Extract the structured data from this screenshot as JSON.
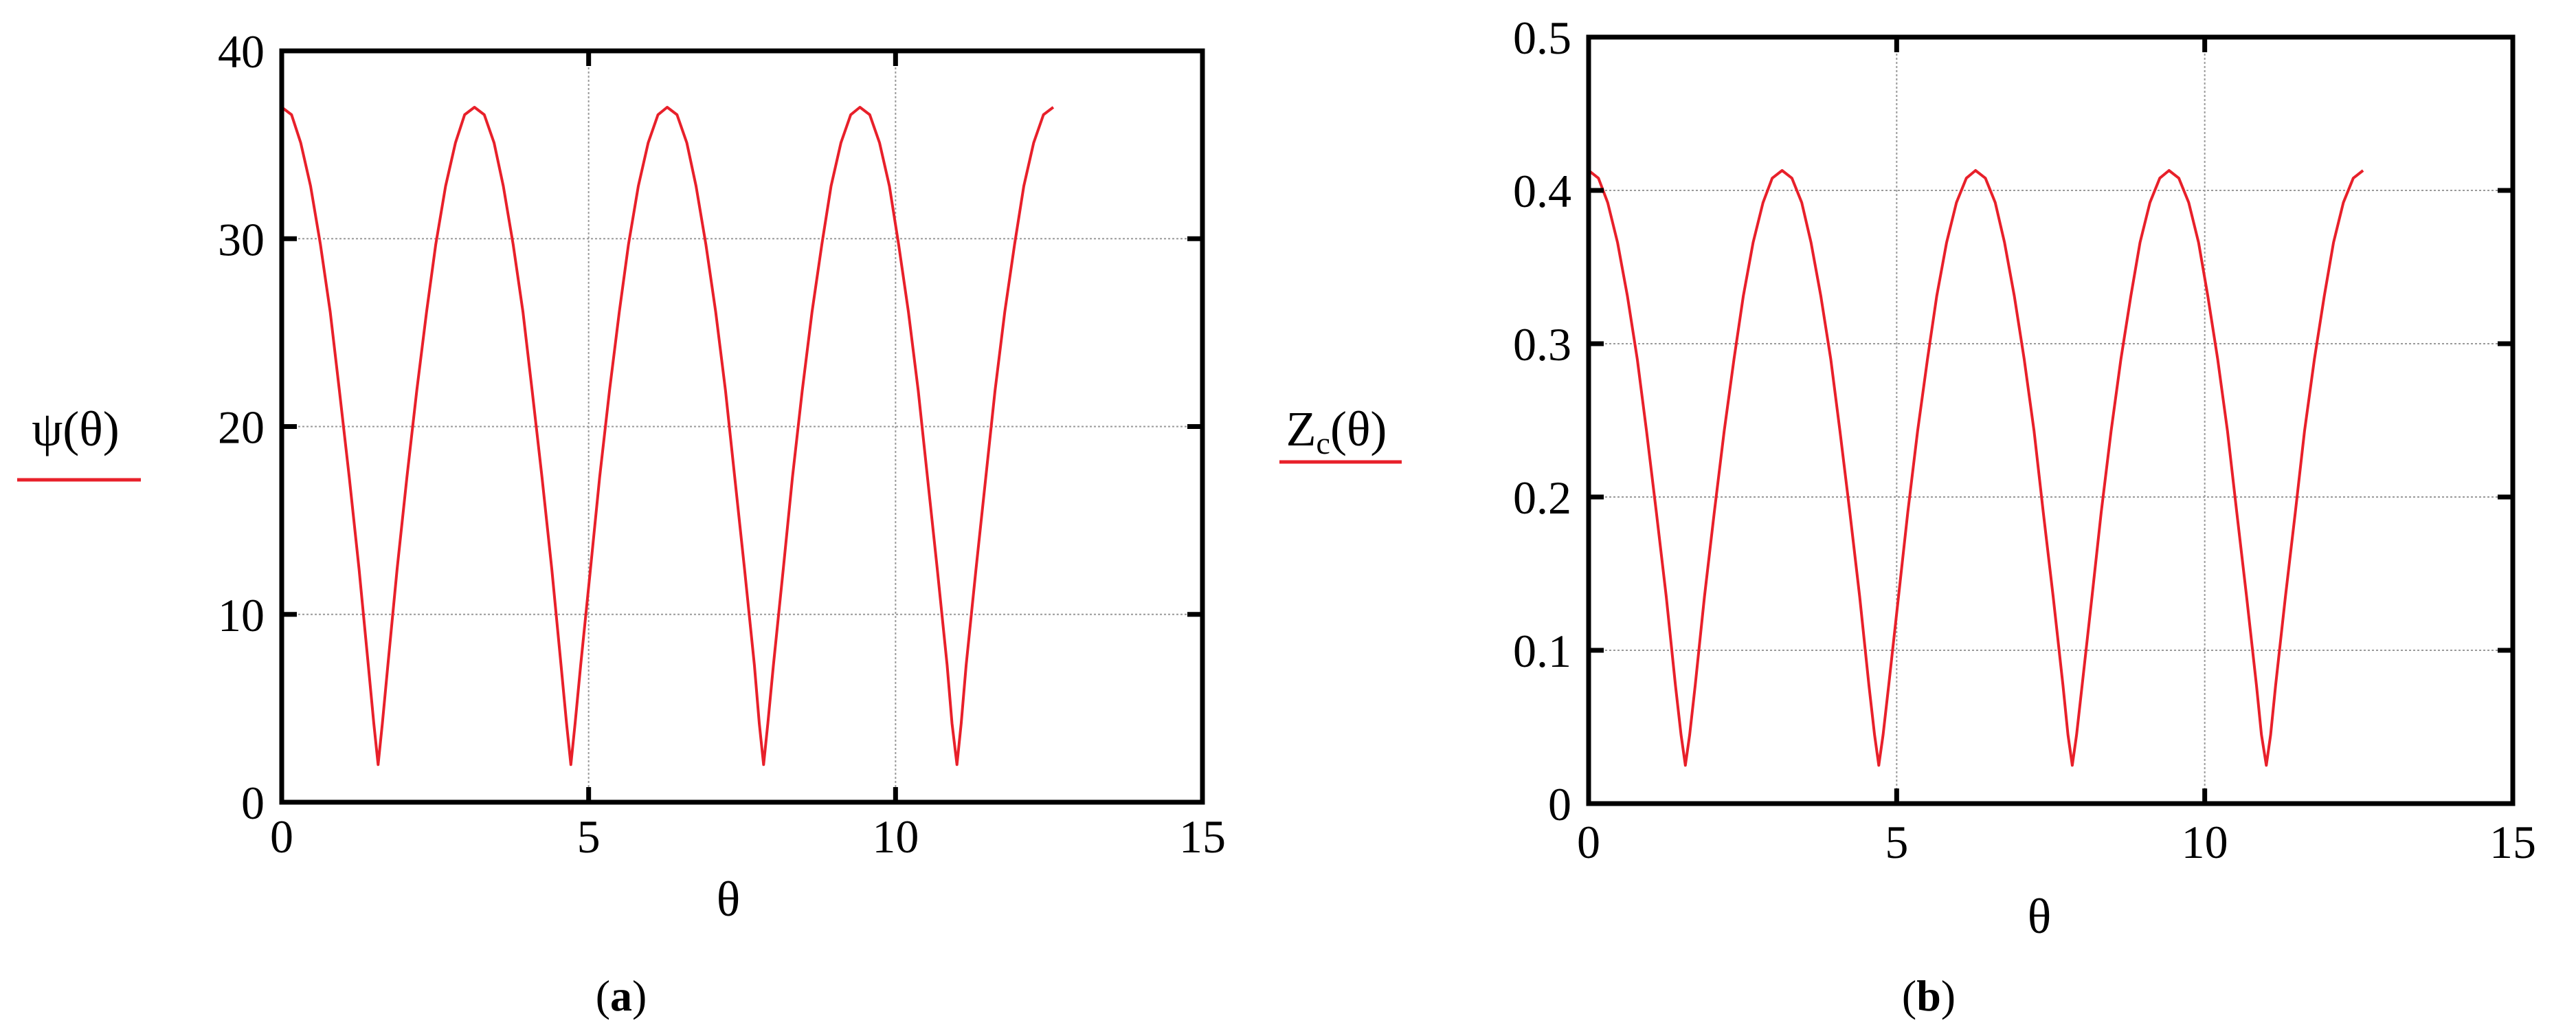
{
  "chart_data": [
    {
      "type": "line",
      "panel_label": "(a)",
      "xlabel": "θ",
      "ylabel": "ψ(θ)",
      "xlim": [
        0,
        15
      ],
      "ylim": [
        0,
        40
      ],
      "xticks": [
        0,
        5,
        10,
        15
      ],
      "xtick_labels": [
        "0",
        "5",
        "10",
        "15"
      ],
      "yticks": [
        0,
        10,
        20,
        30,
        40
      ],
      "ytick_labels": [
        "0",
        "10",
        "20",
        "30",
        "40"
      ],
      "grid": true,
      "line_color": "#e8202a",
      "series": [
        {
          "x": [
            0,
            0.16,
            0.31,
            0.47,
            0.63,
            0.79,
            0.94,
            1.1,
            1.26,
            1.41,
            1.5,
            1.57,
            1.64,
            1.73,
            1.88,
            2.04,
            2.2,
            2.36,
            2.51,
            2.67,
            2.83,
            2.98,
            3.14,
            3.3,
            3.46,
            3.61,
            3.77,
            3.93,
            4.08,
            4.24,
            4.4,
            4.55,
            4.64,
            4.71,
            4.78,
            4.87,
            5.03,
            5.18,
            5.34,
            5.5,
            5.65,
            5.81,
            5.97,
            6.13,
            6.28,
            6.44,
            6.6,
            6.75,
            6.91,
            7.07,
            7.23,
            7.38,
            7.54,
            7.7,
            7.78,
            7.85,
            7.92,
            8.01,
            8.17,
            8.32,
            8.48,
            8.64,
            8.8,
            8.95,
            9.11,
            9.27,
            9.42,
            9.58,
            9.74,
            9.9,
            10.05,
            10.21,
            10.37,
            10.52,
            10.68,
            10.84,
            10.92,
            11.0,
            11.07,
            11.15,
            11.31,
            11.47,
            11.62,
            11.78,
            11.94,
            12.09,
            12.25,
            12.41,
            12.57
          ],
          "y": [
            37.0,
            36.6,
            35.1,
            32.8,
            29.7,
            26.1,
            21.9,
            17.3,
            12.4,
            7.3,
            4.2,
            2.0,
            4.2,
            7.3,
            12.4,
            17.3,
            21.9,
            26.1,
            29.7,
            32.8,
            35.1,
            36.6,
            37.0,
            36.6,
            35.1,
            32.8,
            29.7,
            26.1,
            21.9,
            17.3,
            12.4,
            7.3,
            4.2,
            2.0,
            4.2,
            7.3,
            12.4,
            17.3,
            21.9,
            26.1,
            29.7,
            32.8,
            35.1,
            36.6,
            37.0,
            36.6,
            35.1,
            32.8,
            29.7,
            26.1,
            21.9,
            17.3,
            12.4,
            7.3,
            4.2,
            2.0,
            4.2,
            7.3,
            12.4,
            17.3,
            21.9,
            26.1,
            29.7,
            32.8,
            35.1,
            36.6,
            37.0,
            36.6,
            35.1,
            32.8,
            29.7,
            26.1,
            21.9,
            17.3,
            12.4,
            7.3,
            4.2,
            2.0,
            4.2,
            7.3,
            12.4,
            17.3,
            21.9,
            26.1,
            29.7,
            32.8,
            35.1,
            36.6,
            37.0
          ]
        }
      ]
    },
    {
      "type": "line",
      "panel_label": "(b)",
      "xlabel": "θ",
      "ylabel_main": "Z",
      "ylabel_sub": "c",
      "ylabel_rest": "(θ)",
      "xlim": [
        0,
        15
      ],
      "ylim": [
        0,
        0.5
      ],
      "xticks": [
        0,
        5,
        10,
        15
      ],
      "xtick_labels": [
        "0",
        "5",
        "10",
        "15"
      ],
      "yticks": [
        0,
        0.1,
        0.2,
        0.3,
        0.4,
        0.5
      ],
      "ytick_labels": [
        "0",
        "0.1",
        "0.2",
        "0.3",
        "0.4",
        "0.5"
      ],
      "grid": true,
      "line_color": "#e8202a",
      "series": [
        {
          "x": [
            0,
            0.16,
            0.31,
            0.47,
            0.63,
            0.79,
            0.94,
            1.1,
            1.26,
            1.41,
            1.5,
            1.57,
            1.64,
            1.73,
            1.88,
            2.04,
            2.2,
            2.36,
            2.51,
            2.67,
            2.83,
            2.98,
            3.14,
            3.3,
            3.46,
            3.61,
            3.77,
            3.93,
            4.08,
            4.24,
            4.4,
            4.55,
            4.64,
            4.71,
            4.78,
            4.87,
            5.03,
            5.18,
            5.34,
            5.5,
            5.65,
            5.81,
            5.97,
            6.13,
            6.28,
            6.44,
            6.6,
            6.75,
            6.91,
            7.07,
            7.23,
            7.38,
            7.54,
            7.7,
            7.78,
            7.85,
            7.92,
            8.01,
            8.17,
            8.32,
            8.48,
            8.64,
            8.8,
            8.95,
            9.11,
            9.27,
            9.42,
            9.58,
            9.74,
            9.9,
            10.05,
            10.21,
            10.37,
            10.52,
            10.68,
            10.84,
            10.92,
            11.0,
            11.07,
            11.15,
            11.31,
            11.47,
            11.62,
            11.78,
            11.94,
            12.09,
            12.25,
            12.41,
            12.57
          ],
          "y": [
            0.413,
            0.408,
            0.392,
            0.366,
            0.331,
            0.29,
            0.243,
            0.19,
            0.135,
            0.077,
            0.045,
            0.025,
            0.045,
            0.077,
            0.135,
            0.19,
            0.243,
            0.29,
            0.331,
            0.366,
            0.392,
            0.408,
            0.413,
            0.408,
            0.392,
            0.366,
            0.331,
            0.29,
            0.243,
            0.19,
            0.135,
            0.077,
            0.045,
            0.025,
            0.045,
            0.077,
            0.135,
            0.19,
            0.243,
            0.29,
            0.331,
            0.366,
            0.392,
            0.408,
            0.413,
            0.408,
            0.392,
            0.366,
            0.331,
            0.29,
            0.243,
            0.19,
            0.135,
            0.077,
            0.045,
            0.025,
            0.045,
            0.077,
            0.135,
            0.19,
            0.243,
            0.29,
            0.331,
            0.366,
            0.392,
            0.408,
            0.413,
            0.408,
            0.392,
            0.366,
            0.331,
            0.29,
            0.243,
            0.19,
            0.135,
            0.077,
            0.045,
            0.025,
            0.045,
            0.077,
            0.135,
            0.19,
            0.243,
            0.29,
            0.331,
            0.366,
            0.392,
            0.408,
            0.413
          ]
        }
      ]
    }
  ]
}
